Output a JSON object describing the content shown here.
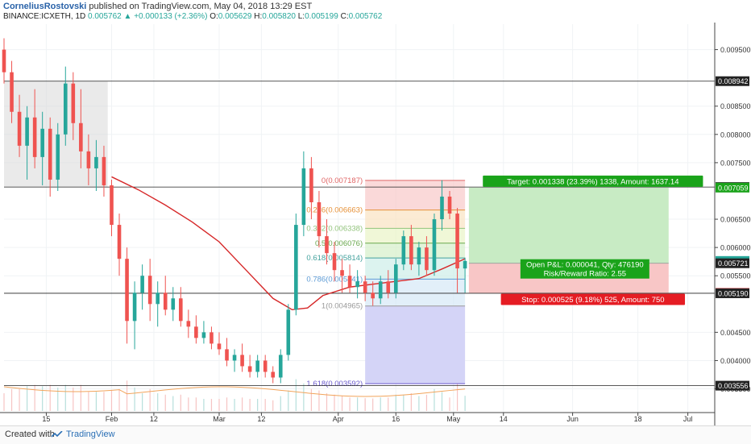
{
  "header": {
    "author": "CorneliusRostovski",
    "published_text": "published on TradingView.com, May 04, 2018 13:29 EST",
    "symbol": "BINANCE:ICXETH, 1D",
    "last": "0.005762",
    "change_arrow": "▲",
    "change": "+0.000133 (+2.36%)",
    "o_label": "O:",
    "o_val": "0.005629",
    "h_label": "H:",
    "h_val": "0.005820",
    "l_label": "L:",
    "l_val": "0.005199",
    "c_label": "C:",
    "c_val": "0.005762"
  },
  "footer": {
    "created": "Created with",
    "brand": "TradingView"
  },
  "colors": {
    "up": "#26a69a",
    "down": "#ef5350",
    "ma": "#d62728",
    "target": "#1aa31a",
    "stop": "#e51c23",
    "fib_ext": "#6a5acd"
  },
  "chart_data": {
    "type": "candlestick",
    "symbol": "BINANCE:ICXETH",
    "interval": "1D",
    "y_axis": {
      "ylim": [
        0.00308,
        0.00995
      ],
      "ticks": [
        "0.009500",
        "0.008500",
        "0.008000",
        "0.007500",
        "0.006500",
        "0.006000",
        "0.005500",
        "0.004500",
        "0.004000",
        "0.003500"
      ],
      "price_labels": [
        {
          "text": "0.008942",
          "value": 0.008942,
          "style": "dark"
        },
        {
          "text": "0.007069",
          "value": 0.007069,
          "style": "dark"
        },
        {
          "text": "0.007059",
          "value": 0.007059,
          "style": "green"
        },
        {
          "text": "0.005762",
          "value": 0.005762,
          "style": "teal"
        },
        {
          "text": "0.005721",
          "value": 0.005721,
          "style": "dark"
        },
        {
          "text": "0.005196",
          "value": 0.005196,
          "style": "red"
        },
        {
          "text": "0.005190",
          "value": 0.00519,
          "style": "dark"
        },
        {
          "text": "0.003556",
          "value": 0.003556,
          "style": "dark"
        }
      ]
    },
    "x_axis": {
      "ticks": [
        {
          "label": "15",
          "date": "2018-01-15"
        },
        {
          "label": "Feb",
          "date": "2018-02-01"
        },
        {
          "label": "12",
          "date": "2018-02-12"
        },
        {
          "label": "Mar",
          "date": "2018-03-01"
        },
        {
          "label": "12",
          "date": "2018-03-12"
        },
        {
          "label": "Apr",
          "date": "2018-04-01"
        },
        {
          "label": "16",
          "date": "2018-04-16"
        },
        {
          "label": "May",
          "date": "2018-05-01"
        },
        {
          "label": "14",
          "date": "2018-05-14"
        },
        {
          "label": "Jun",
          "date": "2018-06-01"
        },
        {
          "label": "18",
          "date": "2018-06-18"
        },
        {
          "label": "Jul",
          "date": "2018-07-01"
        }
      ],
      "range": [
        "2018-01-04",
        "2018-07-08"
      ]
    },
    "horizontal_lines": [
      0.008942,
      0.007069,
      0.00519,
      0.003556
    ],
    "shaded_zone": {
      "from": "2018-01-04",
      "to": "2018-01-31",
      "low": 0.007069,
      "high": 0.008942
    },
    "fibonacci": {
      "from": "2018-04-08",
      "to": "2018-05-04",
      "levels": [
        {
          "label": "0(0.007187)",
          "value": 0.007187
        },
        {
          "label": "0.236(0.006663)",
          "value": 0.006663
        },
        {
          "label": "0.382(0.006338)",
          "value": 0.006338
        },
        {
          "label": "0.5(0.006076)",
          "value": 0.006076
        },
        {
          "label": "0.618(0.005814)",
          "value": 0.005814
        },
        {
          "label": "0.786(0.005441)",
          "value": 0.005441
        },
        {
          "label": "1(0.004965)",
          "value": 0.004965
        },
        {
          "label": "1.618(0.003592)",
          "value": 0.003592
        }
      ]
    },
    "position": {
      "from": "2018-05-05",
      "to": "2018-06-26",
      "entry": 0.005721,
      "target": 0.007059,
      "stop": 0.005196,
      "target_label": "Target: 0.001338 (23.39%) 1338, Amount: 1637.14",
      "stop_label": "Stop: 0.000525 (9.18%) 525, Amount: 750",
      "pnl_label": "Open P&L: 0.000041, Qty: 476190",
      "rr_label": "Risk/Reward Ratio: 2.55"
    },
    "moving_average": [
      {
        "date": "2018-02-01",
        "value": 0.00725
      },
      {
        "date": "2018-02-08",
        "value": 0.00702
      },
      {
        "date": "2018-02-15",
        "value": 0.00675
      },
      {
        "date": "2018-02-22",
        "value": 0.00645
      },
      {
        "date": "2018-03-01",
        "value": 0.0061
      },
      {
        "date": "2018-03-08",
        "value": 0.0056
      },
      {
        "date": "2018-03-15",
        "value": 0.0051
      },
      {
        "date": "2018-03-20",
        "value": 0.0049
      },
      {
        "date": "2018-03-24",
        "value": 0.00493
      },
      {
        "date": "2018-03-28",
        "value": 0.00515
      },
      {
        "date": "2018-04-04",
        "value": 0.0053
      },
      {
        "date": "2018-04-10",
        "value": 0.00535
      },
      {
        "date": "2018-04-16",
        "value": 0.0054
      },
      {
        "date": "2018-04-22",
        "value": 0.00545
      },
      {
        "date": "2018-04-28",
        "value": 0.00562
      },
      {
        "date": "2018-05-04",
        "value": 0.0058
      }
    ],
    "candles": [
      {
        "date": "2018-01-04",
        "o": 0.0095,
        "h": 0.0097,
        "l": 0.0089,
        "c": 0.0091
      },
      {
        "date": "2018-01-06",
        "o": 0.0091,
        "h": 0.0093,
        "l": 0.0082,
        "c": 0.0084
      },
      {
        "date": "2018-01-08",
        "o": 0.0084,
        "h": 0.0087,
        "l": 0.0076,
        "c": 0.0078
      },
      {
        "date": "2018-01-10",
        "o": 0.0078,
        "h": 0.0085,
        "l": 0.0072,
        "c": 0.0083
      },
      {
        "date": "2018-01-12",
        "o": 0.0083,
        "h": 0.0088,
        "l": 0.0074,
        "c": 0.0076
      },
      {
        "date": "2018-01-14",
        "o": 0.0076,
        "h": 0.0084,
        "l": 0.0071,
        "c": 0.0081
      },
      {
        "date": "2018-01-16",
        "o": 0.0081,
        "h": 0.0083,
        "l": 0.0069,
        "c": 0.0072
      },
      {
        "date": "2018-01-18",
        "o": 0.0072,
        "h": 0.0082,
        "l": 0.007,
        "c": 0.008
      },
      {
        "date": "2018-01-20",
        "o": 0.008,
        "h": 0.0092,
        "l": 0.0078,
        "c": 0.0089
      },
      {
        "date": "2018-01-22",
        "o": 0.0089,
        "h": 0.0091,
        "l": 0.0079,
        "c": 0.0082
      },
      {
        "date": "2018-01-24",
        "o": 0.0082,
        "h": 0.0088,
        "l": 0.0074,
        "c": 0.0077
      },
      {
        "date": "2018-01-26",
        "o": 0.0077,
        "h": 0.008,
        "l": 0.0071,
        "c": 0.0074
      },
      {
        "date": "2018-01-28",
        "o": 0.0074,
        "h": 0.0079,
        "l": 0.007,
        "c": 0.0076
      },
      {
        "date": "2018-01-30",
        "o": 0.0076,
        "h": 0.0078,
        "l": 0.0069,
        "c": 0.0071
      },
      {
        "date": "2018-02-01",
        "o": 0.0071,
        "h": 0.0072,
        "l": 0.0062,
        "c": 0.0064
      },
      {
        "date": "2018-02-03",
        "o": 0.0064,
        "h": 0.0066,
        "l": 0.0055,
        "c": 0.0058
      },
      {
        "date": "2018-02-05",
        "o": 0.0058,
        "h": 0.006,
        "l": 0.0043,
        "c": 0.0047
      },
      {
        "date": "2018-02-07",
        "o": 0.0047,
        "h": 0.0054,
        "l": 0.0042,
        "c": 0.0052
      },
      {
        "date": "2018-02-09",
        "o": 0.0052,
        "h": 0.0057,
        "l": 0.0049,
        "c": 0.0055
      },
      {
        "date": "2018-02-11",
        "o": 0.0055,
        "h": 0.0058,
        "l": 0.0047,
        "c": 0.005
      },
      {
        "date": "2018-02-13",
        "o": 0.005,
        "h": 0.0054,
        "l": 0.0046,
        "c": 0.0052
      },
      {
        "date": "2018-02-15",
        "o": 0.0052,
        "h": 0.0055,
        "l": 0.0048,
        "c": 0.0049
      },
      {
        "date": "2018-02-17",
        "o": 0.0049,
        "h": 0.0053,
        "l": 0.0047,
        "c": 0.0051
      },
      {
        "date": "2018-02-19",
        "o": 0.0051,
        "h": 0.0053,
        "l": 0.0046,
        "c": 0.0047
      },
      {
        "date": "2018-02-21",
        "o": 0.0047,
        "h": 0.0049,
        "l": 0.0044,
        "c": 0.0046
      },
      {
        "date": "2018-02-23",
        "o": 0.0046,
        "h": 0.0048,
        "l": 0.0043,
        "c": 0.0044
      },
      {
        "date": "2018-02-25",
        "o": 0.0044,
        "h": 0.0047,
        "l": 0.0043,
        "c": 0.0045
      },
      {
        "date": "2018-02-27",
        "o": 0.0045,
        "h": 0.0046,
        "l": 0.0042,
        "c": 0.0043
      },
      {
        "date": "2018-03-01",
        "o": 0.0043,
        "h": 0.0045,
        "l": 0.0041,
        "c": 0.0042
      },
      {
        "date": "2018-03-03",
        "o": 0.0042,
        "h": 0.0044,
        "l": 0.0039,
        "c": 0.004
      },
      {
        "date": "2018-03-05",
        "o": 0.004,
        "h": 0.0042,
        "l": 0.0038,
        "c": 0.0041
      },
      {
        "date": "2018-03-07",
        "o": 0.0041,
        "h": 0.0043,
        "l": 0.0038,
        "c": 0.0039
      },
      {
        "date": "2018-03-09",
        "o": 0.0039,
        "h": 0.0041,
        "l": 0.0037,
        "c": 0.0038
      },
      {
        "date": "2018-03-11",
        "o": 0.0038,
        "h": 0.0041,
        "l": 0.0037,
        "c": 0.004
      },
      {
        "date": "2018-03-13",
        "o": 0.004,
        "h": 0.0041,
        "l": 0.0037,
        "c": 0.0038
      },
      {
        "date": "2018-03-15",
        "o": 0.0038,
        "h": 0.0039,
        "l": 0.0036,
        "c": 0.0037
      },
      {
        "date": "2018-03-17",
        "o": 0.0037,
        "h": 0.0042,
        "l": 0.0036,
        "c": 0.0041
      },
      {
        "date": "2018-03-19",
        "o": 0.0041,
        "h": 0.005,
        "l": 0.004,
        "c": 0.0049
      },
      {
        "date": "2018-03-21",
        "o": 0.0049,
        "h": 0.0066,
        "l": 0.0048,
        "c": 0.0064
      },
      {
        "date": "2018-03-23",
        "o": 0.0064,
        "h": 0.0077,
        "l": 0.0062,
        "c": 0.0074
      },
      {
        "date": "2018-03-25",
        "o": 0.0074,
        "h": 0.0076,
        "l": 0.0065,
        "c": 0.0068
      },
      {
        "date": "2018-03-27",
        "o": 0.0068,
        "h": 0.007,
        "l": 0.006,
        "c": 0.0062
      },
      {
        "date": "2018-03-29",
        "o": 0.0062,
        "h": 0.0065,
        "l": 0.0057,
        "c": 0.0059
      },
      {
        "date": "2018-03-31",
        "o": 0.0059,
        "h": 0.0061,
        "l": 0.0054,
        "c": 0.0056
      },
      {
        "date": "2018-04-02",
        "o": 0.0056,
        "h": 0.0058,
        "l": 0.0052,
        "c": 0.0055
      },
      {
        "date": "2018-04-04",
        "o": 0.0055,
        "h": 0.0057,
        "l": 0.0052,
        "c": 0.0053
      },
      {
        "date": "2018-04-06",
        "o": 0.0053,
        "h": 0.0056,
        "l": 0.0051,
        "c": 0.0054
      },
      {
        "date": "2018-04-08",
        "o": 0.0054,
        "h": 0.0055,
        "l": 0.00505,
        "c": 0.0052
      },
      {
        "date": "2018-04-10",
        "o": 0.0052,
        "h": 0.0054,
        "l": 0.00497,
        "c": 0.0051
      },
      {
        "date": "2018-04-12",
        "o": 0.0051,
        "h": 0.0055,
        "l": 0.005,
        "c": 0.0054
      },
      {
        "date": "2018-04-14",
        "o": 0.0054,
        "h": 0.0056,
        "l": 0.0051,
        "c": 0.0052
      },
      {
        "date": "2018-04-16",
        "o": 0.0052,
        "h": 0.0058,
        "l": 0.0051,
        "c": 0.0057
      },
      {
        "date": "2018-04-18",
        "o": 0.0057,
        "h": 0.0063,
        "l": 0.0056,
        "c": 0.0062
      },
      {
        "date": "2018-04-20",
        "o": 0.0062,
        "h": 0.0064,
        "l": 0.0056,
        "c": 0.0057
      },
      {
        "date": "2018-04-22",
        "o": 0.0057,
        "h": 0.0061,
        "l": 0.0055,
        "c": 0.006
      },
      {
        "date": "2018-04-24",
        "o": 0.006,
        "h": 0.0062,
        "l": 0.0055,
        "c": 0.0056
      },
      {
        "date": "2018-04-26",
        "o": 0.0056,
        "h": 0.0066,
        "l": 0.0055,
        "c": 0.0065
      },
      {
        "date": "2018-04-28",
        "o": 0.0065,
        "h": 0.00719,
        "l": 0.0063,
        "c": 0.0069
      },
      {
        "date": "2018-04-30",
        "o": 0.0069,
        "h": 0.007,
        "l": 0.0065,
        "c": 0.0066
      },
      {
        "date": "2018-05-02",
        "o": 0.0066,
        "h": 0.0067,
        "l": 0.0052,
        "c": 0.00563
      },
      {
        "date": "2018-05-04",
        "o": 0.005629,
        "h": 0.00582,
        "l": 0.005199,
        "c": 0.005762
      }
    ]
  }
}
